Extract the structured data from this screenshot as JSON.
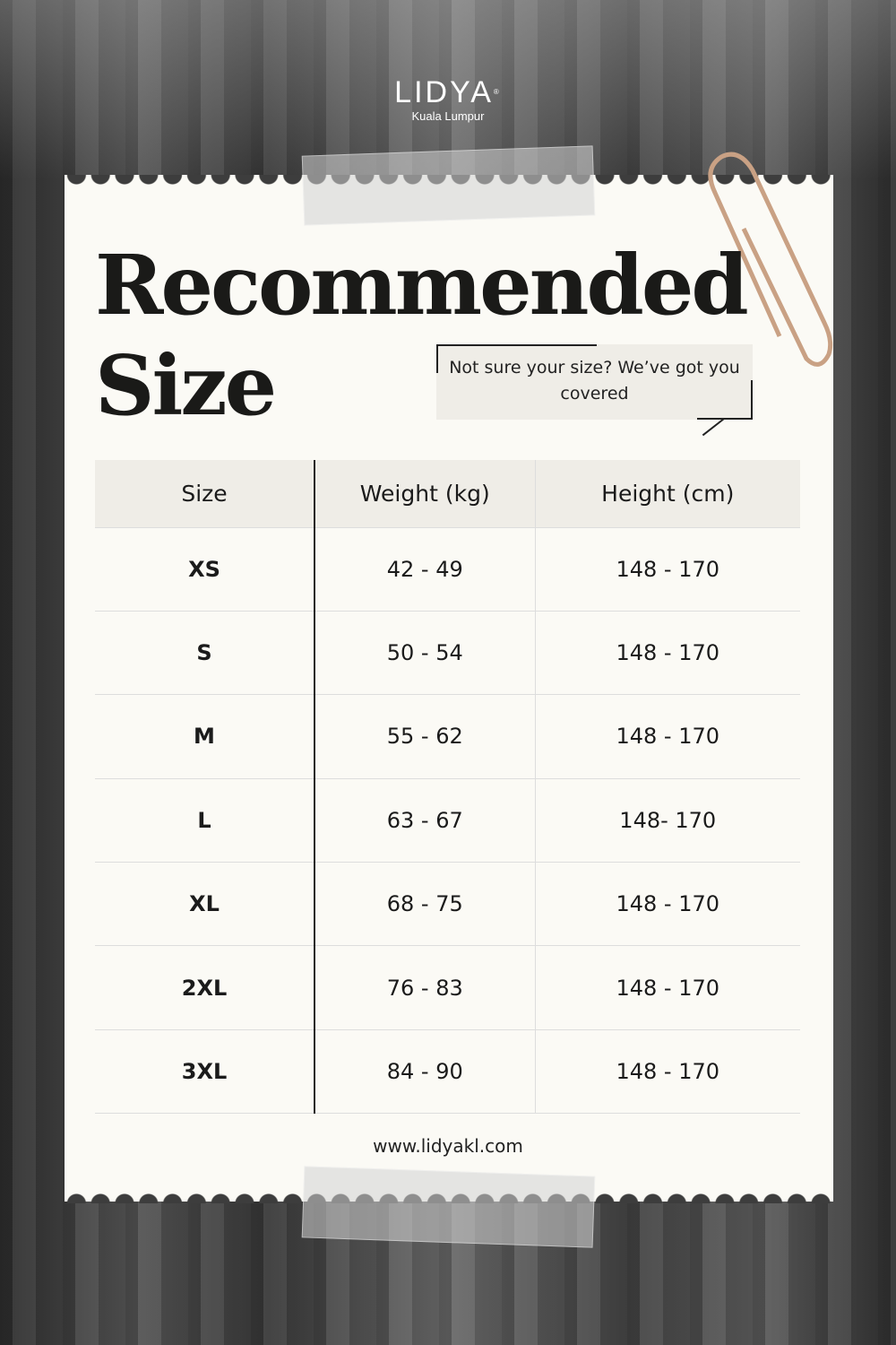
{
  "brand": {
    "name": "LIDYA",
    "mark": "®",
    "city": "Kuala Lumpur"
  },
  "title": {
    "line1": "Recommended",
    "line2": "Size"
  },
  "bubble": "Not sure your size? We’ve got you covered",
  "table": {
    "headers": [
      "Size",
      "Weight (kg)",
      "Height (cm)"
    ],
    "rows": [
      [
        "XS",
        "42 - 49",
        "148 - 170"
      ],
      [
        "S",
        "50 - 54",
        "148 - 170"
      ],
      [
        "M",
        "55 - 62",
        "148 - 170"
      ],
      [
        "L",
        "63 - 67",
        "148- 170"
      ],
      [
        "XL",
        "68 - 75",
        "148 - 170"
      ],
      [
        "2XL",
        "76 - 83",
        "148 - 170"
      ],
      [
        "3XL",
        "84 - 90",
        "148 - 170"
      ]
    ]
  },
  "website": "www.lidyakl.com"
}
